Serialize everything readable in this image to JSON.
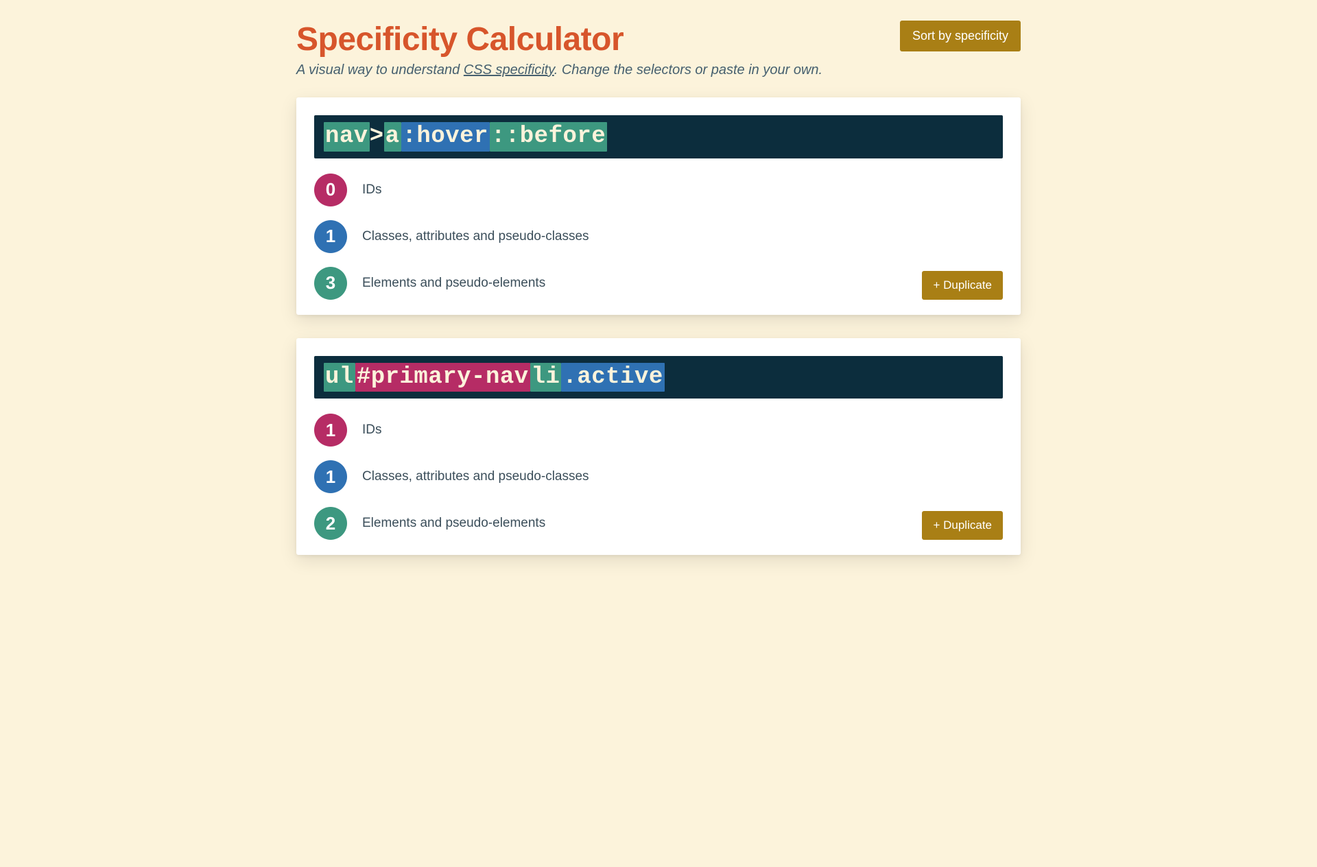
{
  "colors": {
    "page_bg": "#fcf3db",
    "title": "#d7552b",
    "subtitle": "#46606f",
    "text": "#3b4e5a",
    "button_bg": "#a97f15",
    "selector_bg": "#0c2d3d",
    "selector_text": "#fcf3db",
    "hl_element": "#3d9880",
    "hl_class": "#2f71b3",
    "hl_id": "#b62c65",
    "badge_id": "#b62c65",
    "badge_class": "#2f71b3",
    "badge_element": "#3d9880"
  },
  "header": {
    "title": "Specificity Calculator",
    "subtitle_before": "A visual way to understand ",
    "subtitle_link": "CSS specificity",
    "subtitle_after": ". Change the selectors or paste in your own.",
    "sort_button": "Sort by specificity"
  },
  "labels": {
    "ids": "IDs",
    "classes": "Classes, attributes and pseudo-classes",
    "elements": "Elements and pseudo-elements",
    "duplicate": "+ Duplicate"
  },
  "selectors": [
    {
      "tokens": [
        {
          "text": "nav",
          "type": "element"
        },
        {
          "text": " > ",
          "type": "plain"
        },
        {
          "text": "a",
          "type": "element"
        },
        {
          "text": ":hover",
          "type": "class"
        },
        {
          "text": "::before",
          "type": "element"
        }
      ],
      "score": {
        "ids": 0,
        "classes": 1,
        "elements": 3
      }
    },
    {
      "tokens": [
        {
          "text": "ul",
          "type": "element"
        },
        {
          "text": "#primary-nav",
          "type": "id"
        },
        {
          "text": " ",
          "type": "plain"
        },
        {
          "text": "li",
          "type": "element"
        },
        {
          "text": ".active",
          "type": "class"
        }
      ],
      "score": {
        "ids": 1,
        "classes": 1,
        "elements": 2
      }
    }
  ]
}
